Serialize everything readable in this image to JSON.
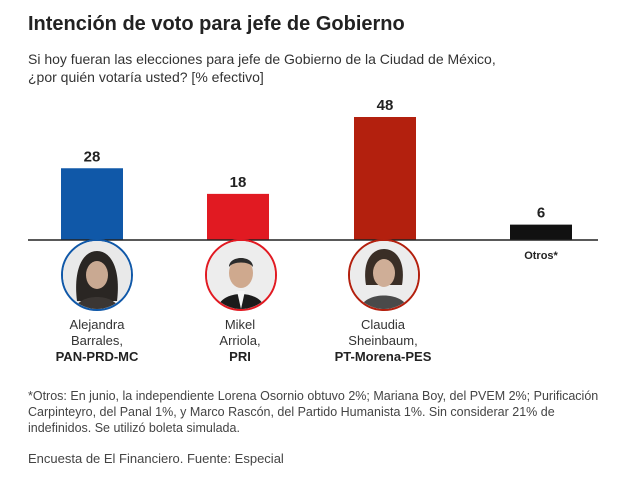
{
  "chart_data": {
    "type": "bar",
    "title": "Intención de voto para  jefe de Gobierno",
    "subtitle_line1": "Si hoy fueran las elecciones para jefe de Gobierno de la Ciudad de México,",
    "subtitle_line2": "¿por quién votaría usted? [% efectivo]",
    "categories": [
      "Alejandra Barrales, PAN-PRD-MC",
      "Mikel Arriola, PRI",
      "Claudia Sheinbaum, PT-Morena-PES",
      "Otros*"
    ],
    "values": [
      28,
      18,
      48,
      6
    ],
    "value_labels": [
      "28",
      "18",
      "48",
      "6"
    ],
    "colors": [
      "#1058a8",
      "#e11a22",
      "#b3200e",
      "#111111"
    ],
    "ylim": [
      0,
      48
    ],
    "grid": false,
    "legend": "none"
  },
  "candidates": [
    {
      "name1": "Alejandra",
      "name2": "Barrales,",
      "party": "PAN-PRD-MC",
      "ring_color": "#1058a8"
    },
    {
      "name1": "Mikel",
      "name2": "Arriola,",
      "party": "PRI",
      "ring_color": "#e11a22"
    },
    {
      "name1": "Claudia",
      "name2": "Sheinbaum,",
      "party": "PT-Morena-PES",
      "ring_color": "#b3200e"
    }
  ],
  "others_label": "Otros*",
  "footnote": "*Otros: En junio, la independiente Lorena Osornio obtuvo 2%; Mariana Boy, del PVEM 2%; Purificación Carpinteyro, del Panal 1%, y Marco Rascón, del Partido Humanista 1%. Sin considerar 21% de indefinidos. Se utilizó boleta simulada.",
  "source": "Encuesta de El Financiero. Fuente: Especial"
}
